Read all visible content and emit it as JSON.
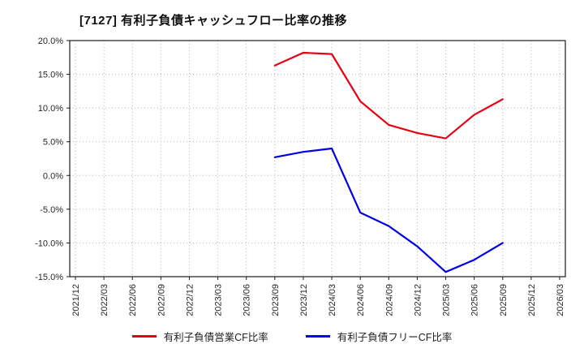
{
  "title": "[7127]  有利子負債キャッシュフロー比率の推移",
  "chart_data": {
    "type": "line",
    "title": "[7127]  有利子負債キャッシュフロー比率の推移",
    "categories": [
      "2021/12",
      "2022/03",
      "2022/06",
      "2022/09",
      "2022/12",
      "2023/03",
      "2023/06",
      "2023/09",
      "2023/12",
      "2024/03",
      "2024/06",
      "2024/09",
      "2024/12",
      "2025/03",
      "2025/06",
      "2025/09",
      "2025/12",
      "2026/03"
    ],
    "series": [
      {
        "name": "有利子負債営業CF比率",
        "color": "#e60012",
        "values": [
          null,
          null,
          null,
          null,
          null,
          null,
          null,
          16.3,
          18.2,
          18.0,
          11.0,
          7.5,
          6.3,
          5.5,
          9.0,
          11.3,
          null,
          null
        ]
      },
      {
        "name": "有利子負債フリーCF比率",
        "color": "#0000e6",
        "values": [
          null,
          null,
          null,
          null,
          null,
          null,
          null,
          2.7,
          3.5,
          4.0,
          -5.5,
          -7.5,
          -10.5,
          -14.3,
          -12.5,
          -10.0,
          null,
          null
        ]
      }
    ],
    "ylim": [
      -15,
      20
    ],
    "yticks": [
      {
        "v": 20,
        "label": "20.0%"
      },
      {
        "v": 15,
        "label": "15.0%"
      },
      {
        "v": 10,
        "label": "10.0%"
      },
      {
        "v": 5,
        "label": "5.0%"
      },
      {
        "v": 0,
        "label": "0.0%"
      },
      {
        "v": -5,
        "label": "-5.0%"
      },
      {
        "v": -10,
        "label": "-10.0%"
      },
      {
        "v": -15,
        "label": "-15.0%"
      }
    ],
    "grid": true,
    "grid_color": "#b3b3b3",
    "axis_color": "#1a1a1a",
    "legend_position": "bottom"
  }
}
